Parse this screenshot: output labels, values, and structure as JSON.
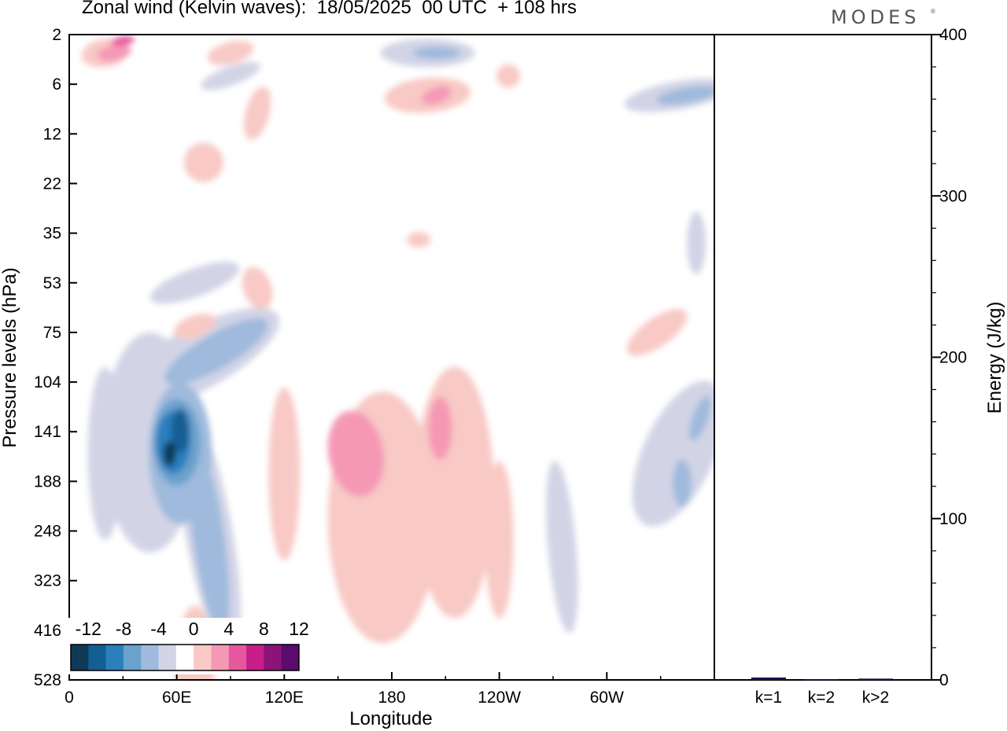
{
  "header": {
    "title": "Zonal wind (Kelvin waves):  18/05/2025  00 UTC  + 108 hrs",
    "brand": "MODES",
    "brand_mark": "®"
  },
  "colors": {
    "neg": [
      "#0f3a57",
      "#135f94",
      "#2b7fbd",
      "#6aa1cd",
      "#9fbadc",
      "#d2d4e6"
    ],
    "zero": "#ffffff",
    "pos": [
      "#f8c9c5",
      "#f598b6",
      "#e6589e",
      "#c81e8a",
      "#8c1478",
      "#5b0b6e"
    ]
  },
  "chart_data": [
    {
      "type": "heatmap",
      "title": "Zonal wind (Kelvin waves):  18/05/2025  00 UTC  + 108 hrs",
      "xlabel": "Longitude",
      "ylabel": "Pressure levels (hPa)",
      "x_ticks": [
        "0",
        "60E",
        "120E",
        "180",
        "120W",
        "60W"
      ],
      "x_tick_degrees": [
        0,
        60,
        120,
        180,
        240,
        300
      ],
      "xlim": [
        0,
        360
      ],
      "y_ticks": [
        "2",
        "6",
        "12",
        "22",
        "35",
        "53",
        "75",
        "104",
        "141",
        "188",
        "248",
        "323",
        "416",
        "528"
      ],
      "y_scale": "pressure levels (top to bottom)",
      "colorbar": {
        "labels": [
          "-12",
          "-8",
          "-4",
          "0",
          "4",
          "8",
          "12"
        ],
        "levels": [
          -12,
          -10,
          -8,
          -6,
          -4,
          -2,
          0,
          2,
          4,
          6,
          8,
          10,
          12
        ]
      },
      "features": [
        {
          "sign": "negative",
          "min": -12,
          "lon": 62,
          "p": 150,
          "note": "strongest easterly core near 60E, upper troposphere"
        },
        {
          "sign": "negative",
          "min": -6,
          "lon": 80,
          "p": 250,
          "note": "tilted easterly band extending down to ~416 hPa"
        },
        {
          "sign": "positive",
          "max": 6,
          "lon": 160,
          "p": 160,
          "note": "westerly anomaly between 150 and 180"
        },
        {
          "sign": "positive",
          "max": 6,
          "lon": 205,
          "p": 141,
          "note": "westerly anomaly near 155W"
        },
        {
          "sign": "negative",
          "min": -4,
          "lon": 340,
          "p": 141,
          "note": "weak easterly near dateline-east edge"
        },
        {
          "sign": "negative",
          "min": -6,
          "lon": 345,
          "p": 7,
          "note": "stratospheric easterly"
        },
        {
          "sign": "positive",
          "max": 8,
          "lon": 30,
          "p": 3,
          "note": "stratospheric westerly near 30E"
        }
      ]
    },
    {
      "type": "bar",
      "title": "",
      "ylabel": "Energy (J/kg)",
      "categories": [
        "k=1",
        "k=2",
        "k>2"
      ],
      "values": [
        1.5,
        0.5,
        0.8
      ],
      "ylim": [
        0,
        400
      ],
      "y_ticks": [
        "0",
        "100",
        "200",
        "300",
        "400"
      ]
    }
  ]
}
